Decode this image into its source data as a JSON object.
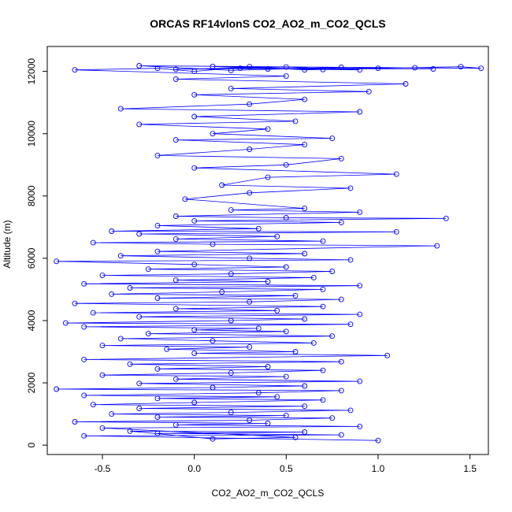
{
  "chart_data": {
    "type": "scatter",
    "title": "ORCAS RF14vlonS CO2_AO2_m_CO2_QCLS",
    "xlabel": "CO2_AO2_m_CO2_QCLS",
    "ylabel": "Altitude (m)",
    "xlim": [
      -0.8,
      1.6
    ],
    "ylim": [
      -300,
      12800
    ],
    "x_ticks": [
      -0.5,
      0.0,
      0.5,
      1.0,
      1.5
    ],
    "x_tick_labels": [
      "-0.5",
      "0.0",
      "0.5",
      "1.0",
      "1.5"
    ],
    "y_ticks": [
      0,
      2000,
      4000,
      6000,
      8000,
      10000,
      12000
    ],
    "y_tick_labels": [
      "0",
      "2000",
      "4000",
      "6000",
      "8000",
      "10000",
      "12000"
    ],
    "grid": false,
    "marker": "open-circle",
    "connect_points": true,
    "series_color": "#0000ff",
    "series": [
      {
        "points": [
          [
            1.0,
            150
          ],
          [
            -0.6,
            300
          ],
          [
            0.8,
            330
          ],
          [
            -0.2,
            380
          ],
          [
            0.6,
            420
          ],
          [
            -0.35,
            450
          ],
          [
            0.1,
            200
          ],
          [
            0.55,
            250
          ],
          [
            -0.5,
            550
          ],
          [
            0.9,
            600
          ],
          [
            -0.1,
            650
          ],
          [
            0.4,
            700
          ],
          [
            -0.65,
            750
          ],
          [
            0.3,
            800
          ],
          [
            0.75,
            870
          ],
          [
            -0.2,
            900
          ],
          [
            0.5,
            950
          ],
          [
            -0.45,
            1000
          ],
          [
            0.2,
            1050
          ],
          [
            0.85,
            1120
          ],
          [
            -0.3,
            1180
          ],
          [
            0.6,
            1250
          ],
          [
            -0.55,
            1300
          ],
          [
            0.0,
            1370
          ],
          [
            0.7,
            1450
          ],
          [
            -0.2,
            1500
          ],
          [
            0.45,
            1550
          ],
          [
            -0.6,
            1600
          ],
          [
            0.35,
            1680
          ],
          [
            0.8,
            1750
          ],
          [
            -0.75,
            1800
          ],
          [
            0.1,
            1850
          ],
          [
            0.6,
            1900
          ],
          [
            -0.3,
            1980
          ],
          [
            0.9,
            2050
          ],
          [
            -0.1,
            2120
          ],
          [
            0.5,
            2200
          ],
          [
            -0.5,
            2250
          ],
          [
            0.2,
            2320
          ],
          [
            0.7,
            2400
          ],
          [
            -0.2,
            2450
          ],
          [
            0.4,
            2520
          ],
          [
            -0.35,
            2600
          ],
          [
            0.8,
            2680
          ],
          [
            -0.6,
            2750
          ],
          [
            1.05,
            2880
          ],
          [
            0.0,
            2950
          ],
          [
            0.55,
            3000
          ],
          [
            -0.15,
            3080
          ],
          [
            0.3,
            3150
          ],
          [
            -0.5,
            3200
          ],
          [
            0.65,
            3280
          ],
          [
            0.1,
            3350
          ],
          [
            -0.4,
            3420
          ],
          [
            0.75,
            3500
          ],
          [
            -0.25,
            3580
          ],
          [
            0.5,
            3650
          ],
          [
            0.0,
            3700
          ],
          [
            0.35,
            3750
          ],
          [
            -0.6,
            3800
          ],
          [
            0.85,
            3880
          ],
          [
            -0.7,
            3920
          ],
          [
            0.2,
            4000
          ],
          [
            0.6,
            4050
          ],
          [
            -0.3,
            4120
          ],
          [
            0.9,
            4200
          ],
          [
            -0.55,
            4250
          ],
          [
            0.45,
            4320
          ],
          [
            -0.1,
            4380
          ],
          [
            0.7,
            4450
          ],
          [
            -0.65,
            4550
          ],
          [
            0.3,
            4600
          ],
          [
            0.8,
            4680
          ],
          [
            -0.2,
            4720
          ],
          [
            0.55,
            4800
          ],
          [
            -0.45,
            4850
          ],
          [
            0.15,
            4920
          ],
          [
            0.7,
            5000
          ],
          [
            -0.35,
            5050
          ],
          [
            0.9,
            5120
          ],
          [
            -0.6,
            5180
          ],
          [
            0.4,
            5250
          ],
          [
            -0.1,
            5300
          ],
          [
            0.65,
            5380
          ],
          [
            -0.5,
            5450
          ],
          [
            0.2,
            5500
          ],
          [
            0.75,
            5580
          ],
          [
            -0.25,
            5650
          ],
          [
            0.5,
            5720
          ],
          [
            0.0,
            5800
          ],
          [
            -0.75,
            5900
          ],
          [
            0.85,
            5950
          ],
          [
            0.3,
            6000
          ],
          [
            -0.4,
            6080
          ],
          [
            0.6,
            6150
          ],
          [
            -0.2,
            6220
          ],
          [
            1.32,
            6400
          ],
          [
            0.1,
            6450
          ],
          [
            -0.55,
            6500
          ],
          [
            0.7,
            6550
          ],
          [
            -0.1,
            6620
          ],
          [
            0.45,
            6700
          ],
          [
            -0.3,
            6780
          ],
          [
            1.1,
            6850
          ],
          [
            -0.45,
            6870
          ],
          [
            0.35,
            6950
          ],
          [
            -0.2,
            7050
          ],
          [
            0.8,
            7150
          ],
          [
            0.0,
            7200
          ],
          [
            1.37,
            7280
          ],
          [
            0.5,
            7300
          ],
          [
            -0.1,
            7350
          ],
          [
            0.9,
            7480
          ],
          [
            0.2,
            7550
          ],
          [
            0.6,
            7600
          ],
          [
            -0.05,
            7900
          ],
          [
            0.3,
            8100
          ],
          [
            0.85,
            8250
          ],
          [
            0.15,
            8350
          ],
          [
            0.4,
            8600
          ],
          [
            1.1,
            8700
          ],
          [
            0.0,
            8900
          ],
          [
            0.5,
            9000
          ],
          [
            0.8,
            9200
          ],
          [
            -0.2,
            9300
          ],
          [
            0.3,
            9500
          ],
          [
            0.6,
            9650
          ],
          [
            -0.1,
            9800
          ],
          [
            0.75,
            9850
          ],
          [
            0.1,
            10000
          ],
          [
            0.4,
            10150
          ],
          [
            -0.3,
            10300
          ],
          [
            0.55,
            10400
          ],
          [
            0.0,
            10550
          ],
          [
            0.9,
            10700
          ],
          [
            -0.4,
            10800
          ],
          [
            0.3,
            10950
          ],
          [
            0.6,
            11100
          ],
          [
            0.0,
            11250
          ],
          [
            0.95,
            11350
          ],
          [
            0.2,
            11450
          ],
          [
            1.15,
            11600
          ],
          [
            -0.1,
            11750
          ],
          [
            0.5,
            11850
          ],
          [
            -0.65,
            12050
          ],
          [
            -0.2,
            12100
          ],
          [
            0.0,
            12000
          ],
          [
            0.3,
            12150
          ],
          [
            0.6,
            12050
          ],
          [
            1.0,
            12100
          ],
          [
            1.45,
            12150
          ],
          [
            1.56,
            12100
          ],
          [
            -0.3,
            12180
          ],
          [
            0.2,
            12030
          ],
          [
            0.8,
            12130
          ],
          [
            0.4,
            12080
          ],
          [
            0.1,
            12160
          ],
          [
            0.7,
            12060
          ],
          [
            1.2,
            12120
          ],
          [
            -0.1,
            12070
          ],
          [
            0.5,
            12140
          ],
          [
            0.9,
            12050
          ],
          [
            0.25,
            12100
          ],
          [
            1.3,
            12080
          ]
        ]
      }
    ]
  }
}
